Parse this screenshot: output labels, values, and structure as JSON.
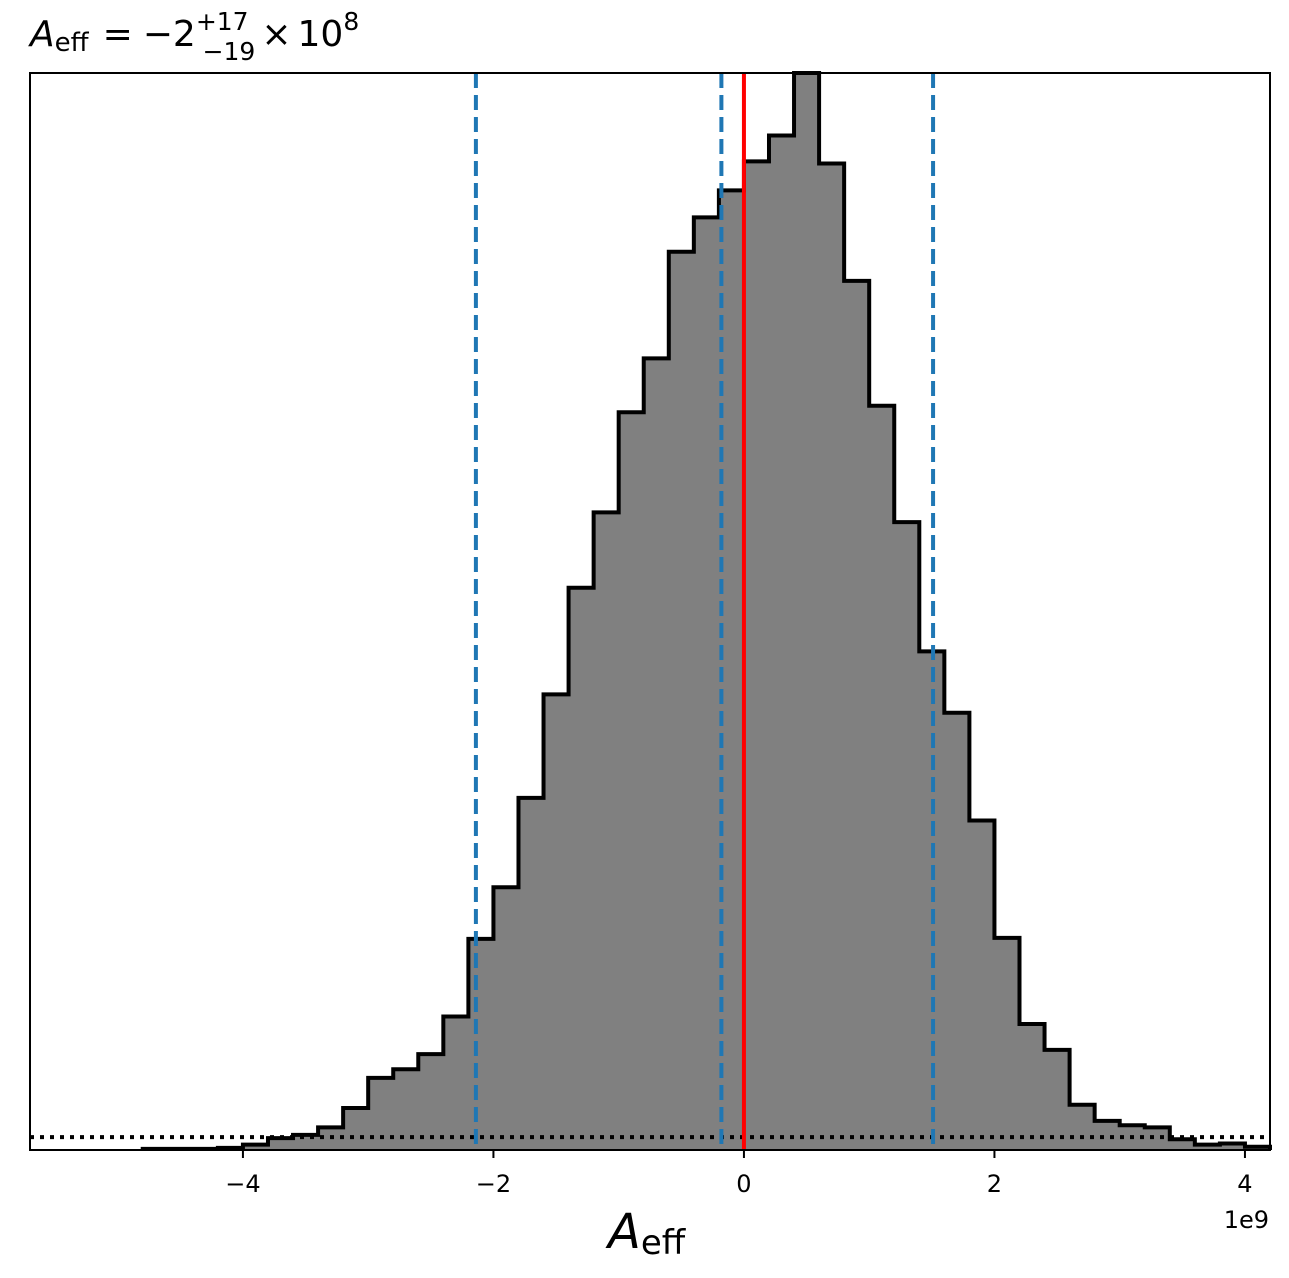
{
  "chart_data": {
    "type": "bar",
    "histogram": true,
    "title": {
      "symbol": "A",
      "subscript": "eff",
      "equals": "=",
      "value": "−2",
      "upper": "+17",
      "lower": "−19",
      "times": "×",
      "base": "10",
      "exponent": "8"
    },
    "xlabel": {
      "symbol": "A",
      "subscript": "eff"
    },
    "x_offset_label": "1e9",
    "xlim": [
      -5.7,
      4.2
    ],
    "ylim": [
      0,
      1.0
    ],
    "xticks": [
      -4,
      -2,
      0,
      2,
      4
    ],
    "xtick_labels": [
      "−4",
      "−2",
      "0",
      "2",
      "4"
    ],
    "grid": false,
    "legend": "none",
    "colors": {
      "fill": "#808080",
      "outline": "#000000",
      "quantile_lines": "#1f77b4",
      "true_value_line": "#ff0000",
      "prior_line": "#000000",
      "frame": "#000000"
    },
    "bins": {
      "start": -4.8,
      "width": 0.2,
      "unit_scale": "1e9",
      "heights": [
        0.001,
        0.001,
        0.001,
        0.002,
        0.005,
        0.011,
        0.014,
        0.021,
        0.039,
        0.067,
        0.075,
        0.089,
        0.124,
        0.196,
        0.244,
        0.327,
        0.423,
        0.522,
        0.592,
        0.685,
        0.735,
        0.834,
        0.866,
        0.891,
        0.918,
        0.942,
        1.0,
        0.916,
        0.807,
        0.691,
        0.583,
        0.463,
        0.406,
        0.306,
        0.197,
        0.117,
        0.093,
        0.042,
        0.027,
        0.023,
        0.021,
        0.01,
        0.005,
        0.006,
        0.003
      ]
    },
    "quantile_lines": [
      -2.14,
      -0.18,
      1.51
    ],
    "true_value": 0.0,
    "prior_level": 0.012
  }
}
